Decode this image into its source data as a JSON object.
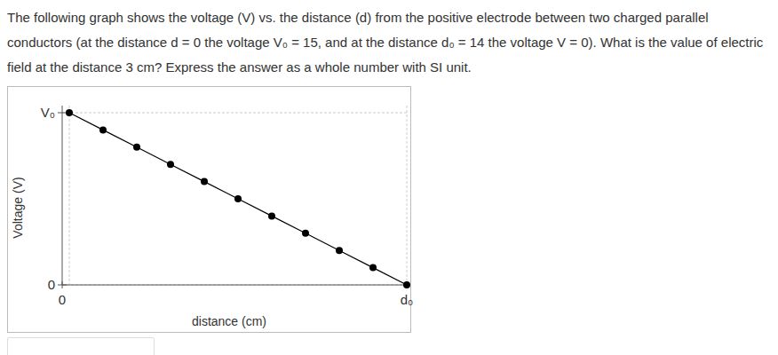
{
  "question": "The following graph shows the voltage (V) vs. the distance (d) from the positive electrode between two charged parallel conductors (at the distance d = 0 the voltage V₀ = 15, and at the distance d₀ = 14 the voltage V = 0). What is the value of electric field at the distance 3 cm? Express the answer as a whole number with SI unit.",
  "chart_data": {
    "type": "line",
    "x_label": "distance (cm)",
    "y_label": "Voltage (V)",
    "x": [
      0,
      1.4,
      2.8,
      4.2,
      5.6,
      7,
      8.4,
      9.8,
      11.2,
      12.6,
      14
    ],
    "values": [
      15,
      13.5,
      12,
      10.5,
      9,
      7.5,
      6,
      4.5,
      3,
      1.5,
      0
    ],
    "color": "#000000",
    "marker": "circle",
    "line_style": "solid",
    "xlim": [
      0,
      14
    ],
    "xticks": [
      0,
      {
        "value": 14,
        "label": "d₀"
      }
    ],
    "ylim": [
      0,
      15
    ],
    "yticks": [
      0,
      {
        "value": 15,
        "label": "V₀"
      }
    ],
    "grid": true
  }
}
